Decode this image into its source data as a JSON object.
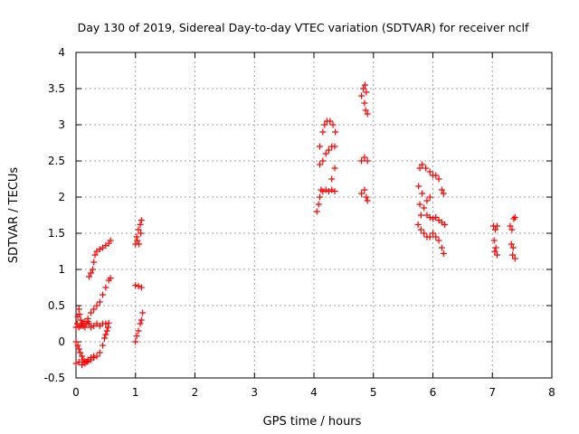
{
  "chart_data": {
    "type": "scatter",
    "title": "Day 130 of 2019, Sidereal Day-to-day VTEC variation (SDTVAR) for receiver nclf",
    "xlabel": "GPS time / hours",
    "ylabel": "SDTVAR / TECUs",
    "xlim": [
      0,
      8
    ],
    "ylim": [
      -0.5,
      4
    ],
    "xticks": [
      "0",
      "1",
      "2",
      "3",
      "4",
      "5",
      "6",
      "7",
      "8"
    ],
    "yticks": [
      "-0.5",
      "0",
      "0.5",
      "1",
      "1.5",
      "2",
      "2.5",
      "3",
      "3.5",
      "4"
    ],
    "grid": true,
    "marker": "+",
    "color": "#ff0000",
    "series": [
      {
        "points": [
          [
            0.0,
            0.2
          ],
          [
            0.02,
            0.25
          ],
          [
            0.03,
            0.35
          ],
          [
            0.05,
            0.45
          ],
          [
            0.06,
            0.38
          ],
          [
            0.08,
            0.3
          ],
          [
            0.1,
            0.25
          ],
          [
            0.12,
            0.22
          ],
          [
            0.15,
            0.2
          ],
          [
            0.18,
            0.25
          ],
          [
            0.2,
            0.28
          ],
          [
            0.22,
            0.25
          ],
          [
            0.25,
            0.2
          ],
          [
            0.3,
            0.22
          ],
          [
            0.35,
            0.25
          ],
          [
            0.4,
            0.22
          ],
          [
            0.45,
            0.25
          ],
          [
            0.5,
            0.25
          ],
          [
            0.55,
            0.26
          ],
          [
            0.0,
            0.0
          ],
          [
            0.03,
            -0.05
          ],
          [
            0.05,
            -0.1
          ],
          [
            0.07,
            -0.15
          ],
          [
            0.1,
            -0.2
          ],
          [
            0.12,
            -0.25
          ],
          [
            0.15,
            -0.27
          ],
          [
            0.18,
            -0.28
          ],
          [
            0.2,
            -0.27
          ],
          [
            0.25,
            -0.25
          ],
          [
            0.3,
            -0.22
          ],
          [
            0.35,
            -0.2
          ],
          [
            0.4,
            -0.15
          ],
          [
            0.45,
            -0.05
          ],
          [
            0.48,
            0.05
          ],
          [
            0.5,
            0.1
          ],
          [
            0.52,
            0.15
          ],
          [
            0.54,
            0.2
          ],
          [
            0.0,
            -0.3
          ],
          [
            0.05,
            -0.28
          ],
          [
            0.1,
            -0.32
          ],
          [
            0.15,
            -0.3
          ],
          [
            0.2,
            -0.25
          ],
          [
            0.25,
            -0.22
          ],
          [
            0.3,
            -0.2
          ],
          [
            0.05,
            0.2
          ],
          [
            0.08,
            0.22
          ],
          [
            0.12,
            0.25
          ],
          [
            0.15,
            0.28
          ],
          [
            0.2,
            0.32
          ],
          [
            0.25,
            0.4
          ],
          [
            0.3,
            0.45
          ],
          [
            0.35,
            0.5
          ],
          [
            0.4,
            0.55
          ],
          [
            0.45,
            0.65
          ],
          [
            0.5,
            0.75
          ],
          [
            0.55,
            0.85
          ],
          [
            0.58,
            0.88
          ],
          [
            0.22,
            0.9
          ],
          [
            0.25,
            0.95
          ],
          [
            0.28,
            1.0
          ],
          [
            0.3,
            1.1
          ],
          [
            0.32,
            1.2
          ],
          [
            0.35,
            1.25
          ],
          [
            0.4,
            1.28
          ],
          [
            0.45,
            1.3
          ],
          [
            0.5,
            1.33
          ],
          [
            0.55,
            1.36
          ],
          [
            0.58,
            1.4
          ],
          [
            1.0,
            1.35
          ],
          [
            1.02,
            1.45
          ],
          [
            1.05,
            1.55
          ],
          [
            1.08,
            1.62
          ],
          [
            1.1,
            1.68
          ],
          [
            1.03,
            1.4
          ],
          [
            1.06,
            1.35
          ],
          [
            1.09,
            1.5
          ],
          [
            1.0,
            0.78
          ],
          [
            1.05,
            0.77
          ],
          [
            1.1,
            0.75
          ],
          [
            1.0,
            0.0
          ],
          [
            1.02,
            0.08
          ],
          [
            1.05,
            0.15
          ],
          [
            1.08,
            0.25
          ],
          [
            1.1,
            0.3
          ],
          [
            1.12,
            0.4
          ],
          [
            4.05,
            1.8
          ],
          [
            4.08,
            1.9
          ],
          [
            4.1,
            2.0
          ],
          [
            4.12,
            2.1
          ],
          [
            4.15,
            2.08
          ],
          [
            4.2,
            2.1
          ],
          [
            4.25,
            2.08
          ],
          [
            4.3,
            2.1
          ],
          [
            4.35,
            2.08
          ],
          [
            4.1,
            2.45
          ],
          [
            4.15,
            2.5
          ],
          [
            4.2,
            2.6
          ],
          [
            4.25,
            2.65
          ],
          [
            4.3,
            2.7
          ],
          [
            4.35,
            2.7
          ],
          [
            4.1,
            2.7
          ],
          [
            4.15,
            2.9
          ],
          [
            4.18,
            3.0
          ],
          [
            4.22,
            3.05
          ],
          [
            4.27,
            3.05
          ],
          [
            4.32,
            3.0
          ],
          [
            4.36,
            2.9
          ],
          [
            4.3,
            2.25
          ],
          [
            4.35,
            2.4
          ],
          [
            4.8,
            3.4
          ],
          [
            4.83,
            3.5
          ],
          [
            4.86,
            3.55
          ],
          [
            4.88,
            3.45
          ],
          [
            4.85,
            3.3
          ],
          [
            4.87,
            3.2
          ],
          [
            4.9,
            3.15
          ],
          [
            4.8,
            2.5
          ],
          [
            4.85,
            2.55
          ],
          [
            4.9,
            2.5
          ],
          [
            4.8,
            2.05
          ],
          [
            4.85,
            2.1
          ],
          [
            4.88,
            2.0
          ],
          [
            4.9,
            1.95
          ],
          [
            5.75,
            1.62
          ],
          [
            5.8,
            1.75
          ],
          [
            5.85,
            1.85
          ],
          [
            5.9,
            1.95
          ],
          [
            5.95,
            2.0
          ],
          [
            5.78,
            1.9
          ],
          [
            5.82,
            2.05
          ],
          [
            5.76,
            2.15
          ],
          [
            5.8,
            1.55
          ],
          [
            5.85,
            1.5
          ],
          [
            5.9,
            1.45
          ],
          [
            5.95,
            1.45
          ],
          [
            6.0,
            1.5
          ],
          [
            6.05,
            1.45
          ],
          [
            6.1,
            1.4
          ],
          [
            6.15,
            1.3
          ],
          [
            6.18,
            1.22
          ],
          [
            5.78,
            2.4
          ],
          [
            5.82,
            2.45
          ],
          [
            5.88,
            2.4
          ],
          [
            5.95,
            2.35
          ],
          [
            6.0,
            2.3
          ],
          [
            6.05,
            2.3
          ],
          [
            6.1,
            2.25
          ],
          [
            6.15,
            2.1
          ],
          [
            6.18,
            2.05
          ],
          [
            5.9,
            1.75
          ],
          [
            5.95,
            1.72
          ],
          [
            6.0,
            1.7
          ],
          [
            6.05,
            1.72
          ],
          [
            6.1,
            1.68
          ],
          [
            6.15,
            1.65
          ],
          [
            6.2,
            1.62
          ],
          [
            7.02,
            1.6
          ],
          [
            7.05,
            1.55
          ],
          [
            7.08,
            1.6
          ],
          [
            7.03,
            1.4
          ],
          [
            7.06,
            1.3
          ],
          [
            7.04,
            1.25
          ],
          [
            7.08,
            1.2
          ],
          [
            7.3,
            1.6
          ],
          [
            7.33,
            1.55
          ],
          [
            7.36,
            1.7
          ],
          [
            7.38,
            1.72
          ],
          [
            7.32,
            1.35
          ],
          [
            7.35,
            1.3
          ],
          [
            7.34,
            1.2
          ],
          [
            7.38,
            1.15
          ]
        ]
      }
    ]
  }
}
